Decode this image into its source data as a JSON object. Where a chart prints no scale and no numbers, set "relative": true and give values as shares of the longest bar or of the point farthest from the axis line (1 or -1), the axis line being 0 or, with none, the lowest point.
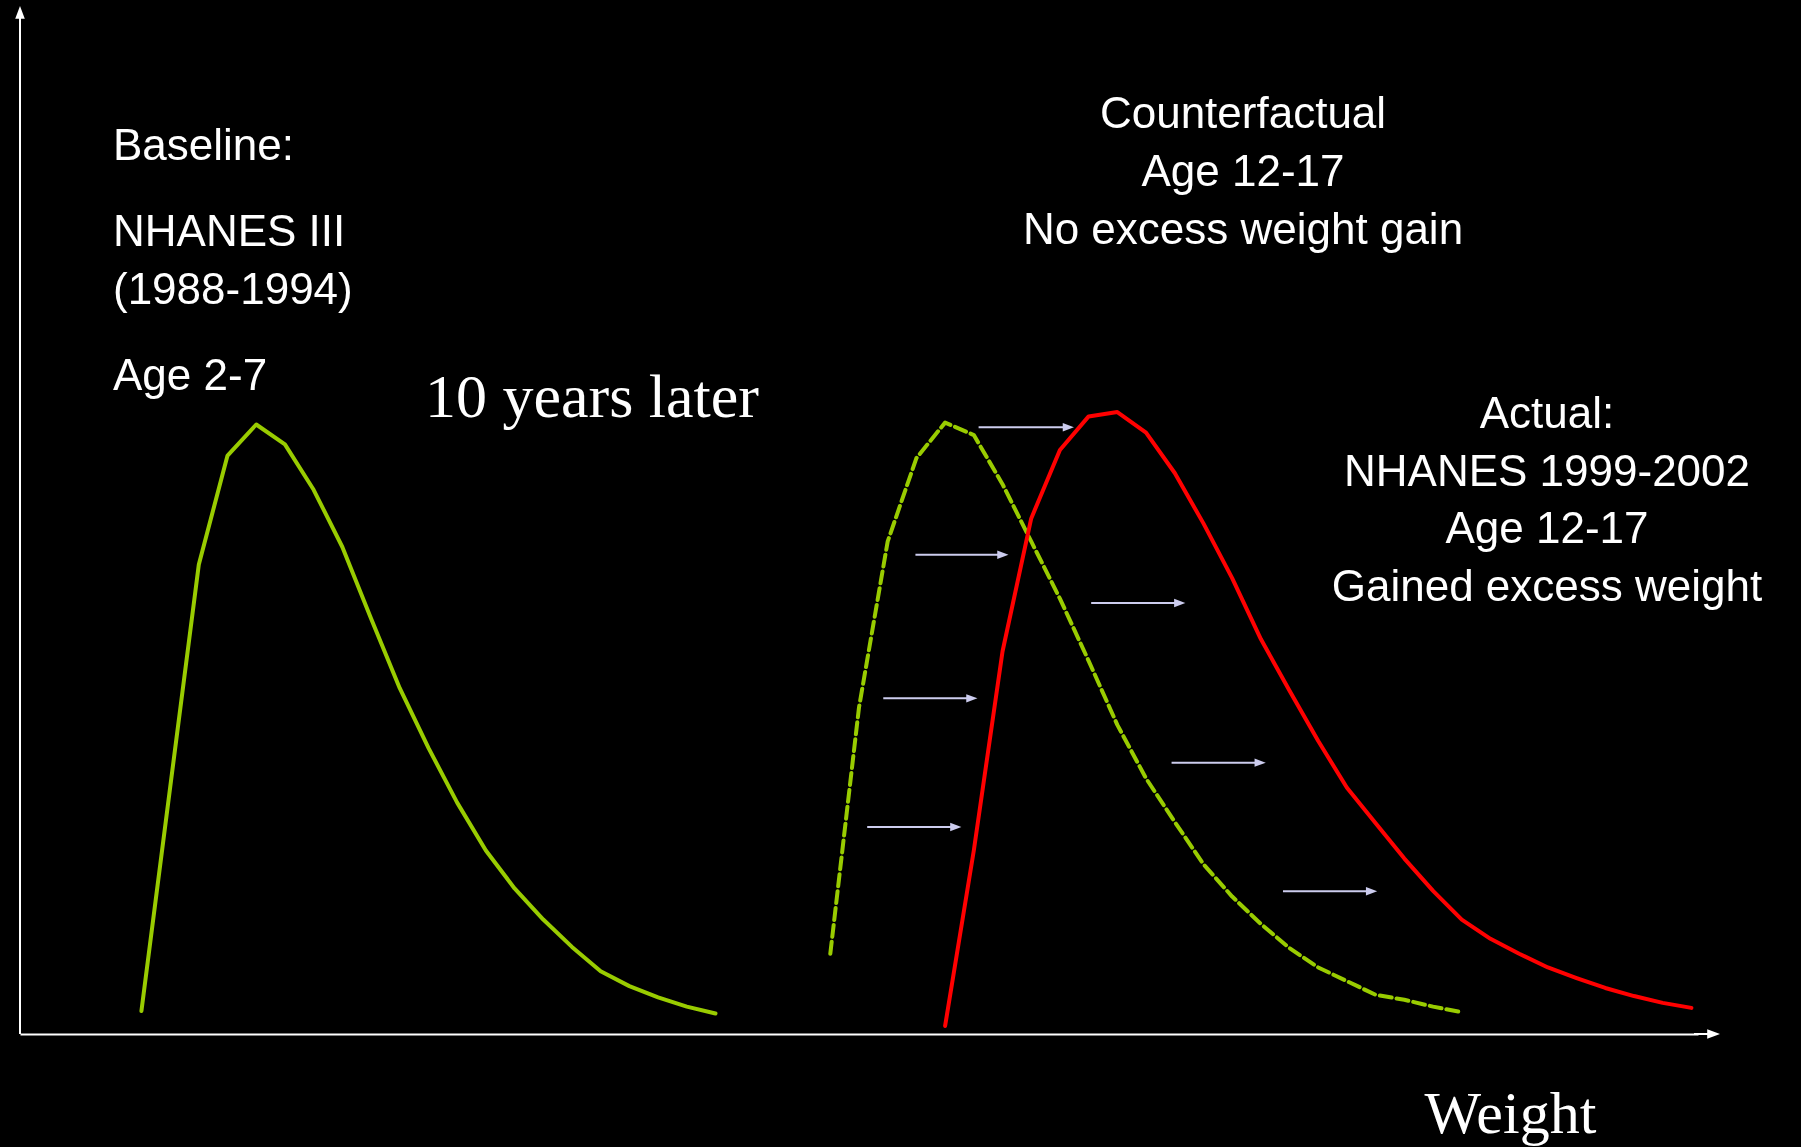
{
  "chart_data": {
    "type": "line",
    "relative": true,
    "xlabel": "Weight",
    "categories": [
      null,
      null,
      null,
      null,
      null,
      null,
      null,
      null,
      null,
      null,
      null,
      null,
      null,
      null,
      null,
      null,
      null,
      null,
      null,
      null,
      null,
      null,
      null,
      null,
      null,
      null,
      null,
      null,
      null,
      null,
      null,
      null,
      null,
      null,
      null,
      null,
      null,
      null,
      null,
      null,
      null,
      null,
      null,
      null,
      null,
      null,
      null,
      null,
      null,
      null,
      null,
      null,
      null,
      null,
      null,
      null,
      null,
      null,
      null
    ],
    "series": [
      {
        "color": "#99cc00",
        "line_style": "solid",
        "values": [
          null,
          null,
          null,
          null,
          0.037,
          0.396,
          0.755,
          0.93,
          0.98,
          0.948,
          0.875,
          0.783,
          0.668,
          0.556,
          0.46,
          0.372,
          0.295,
          0.234,
          0.184,
          0.14,
          0.101,
          0.077,
          0.059,
          0.044,
          0.033,
          null,
          null,
          null,
          null,
          null,
          null,
          null,
          null,
          null,
          null,
          null,
          null,
          null,
          null,
          null,
          null,
          null,
          null,
          null,
          null,
          null,
          null,
          null,
          null,
          null,
          null,
          null,
          null,
          null,
          null,
          null,
          null,
          null,
          null
        ]
      },
      {
        "color": "#99cc00",
        "line_style": "dashed",
        "values": [
          null,
          null,
          null,
          null,
          null,
          null,
          null,
          null,
          null,
          null,
          null,
          null,
          null,
          null,
          null,
          null,
          null,
          null,
          null,
          null,
          null,
          null,
          null,
          null,
          null,
          null,
          null,
          null,
          0.129,
          0.525,
          0.792,
          0.926,
          0.983,
          0.963,
          0.884,
          0.792,
          0.7,
          0.6,
          0.497,
          0.411,
          0.341,
          0.273,
          0.221,
          0.177,
          0.138,
          0.107,
          0.085,
          0.063,
          0.055,
          0.044,
          0.035,
          null,
          null,
          null,
          null,
          null,
          null,
          null,
          null
        ]
      },
      {
        "color": "#ff0000",
        "line_style": "solid",
        "values": [
          null,
          null,
          null,
          null,
          null,
          null,
          null,
          null,
          null,
          null,
          null,
          null,
          null,
          null,
          null,
          null,
          null,
          null,
          null,
          null,
          null,
          null,
          null,
          null,
          null,
          null,
          null,
          null,
          null,
          null,
          null,
          null,
          0.013,
          0.295,
          0.615,
          0.829,
          0.939,
          0.993,
          1,
          0.967,
          0.902,
          0.821,
          0.733,
          0.635,
          0.552,
          0.471,
          0.396,
          0.339,
          0.282,
          0.23,
          0.184,
          0.153,
          0.129,
          0.107,
          0.09,
          0.074,
          0.061,
          0.05,
          0.042
        ]
      }
    ],
    "annotations": [
      "Baseline:",
      "NHANES III\n(1988-1994)",
      "Age 2-7",
      "10 years later",
      "Counterfactual\nAge 12-17\nNo excess weight gain",
      "Actual:\nNHANES 1999-2002\nAge 12-17\nGained excess weight"
    ]
  }
}
